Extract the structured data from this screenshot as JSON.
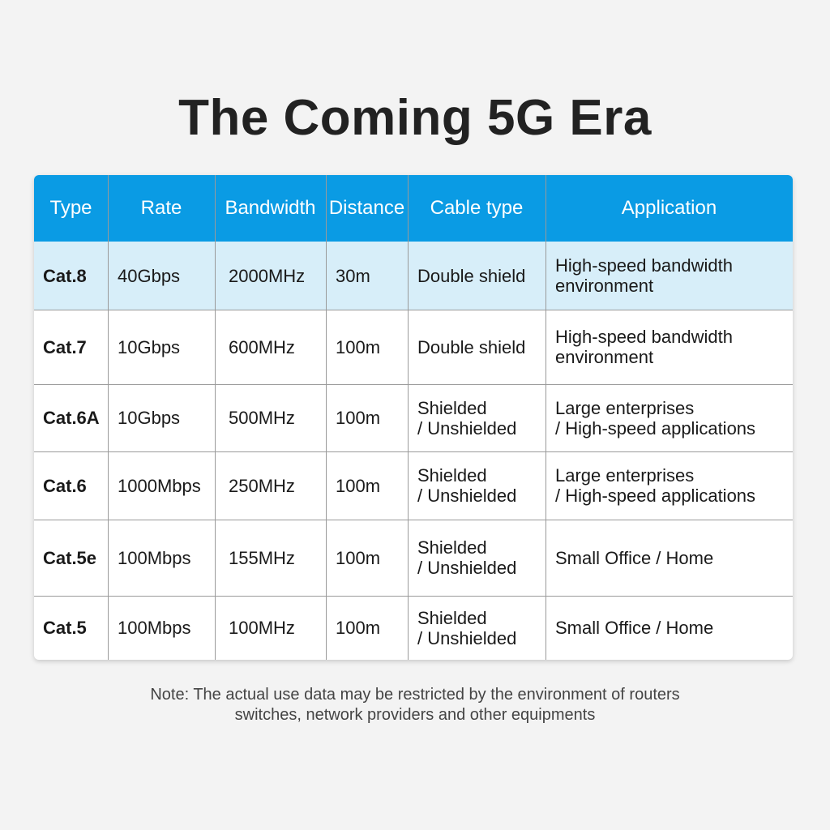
{
  "title": "The Coming 5G Era",
  "table": {
    "header": [
      "Type",
      "Rate",
      "Bandwidth",
      "Distance",
      "Cable type",
      "Application"
    ],
    "rows": [
      [
        "Cat.8",
        "40Gbps",
        "2000MHz",
        "30m",
        "Double shield",
        [
          "High-speed bandwidth",
          "environment"
        ]
      ],
      [
        "Cat.7",
        "10Gbps",
        "600MHz",
        "100m",
        "Double shield",
        [
          "High-speed bandwidth",
          "environment"
        ]
      ],
      [
        "Cat.6A",
        "10Gbps",
        "500MHz",
        "100m",
        [
          "Shielded",
          "/ Unshielded"
        ],
        [
          "Large enterprises",
          "/ High-speed applications"
        ]
      ],
      [
        "Cat.6",
        "1000Mbps",
        "250MHz",
        "100m",
        [
          "Shielded",
          "/ Unshielded"
        ],
        [
          "Large enterprises",
          "/ High-speed applications"
        ]
      ],
      [
        "Cat.5e",
        "100Mbps",
        "155MHz",
        "100m",
        [
          "Shielded",
          "/ Unshielded"
        ],
        "Small Office / Home"
      ],
      [
        "Cat.5",
        "100Mbps",
        "100MHz",
        "100m",
        [
          "Shielded",
          "/ Unshielded"
        ],
        "Small Office / Home"
      ]
    ]
  },
  "note": [
    "Note: The actual use data may be restricted by the environment of routers",
    "switches, network providers and other equipments"
  ]
}
